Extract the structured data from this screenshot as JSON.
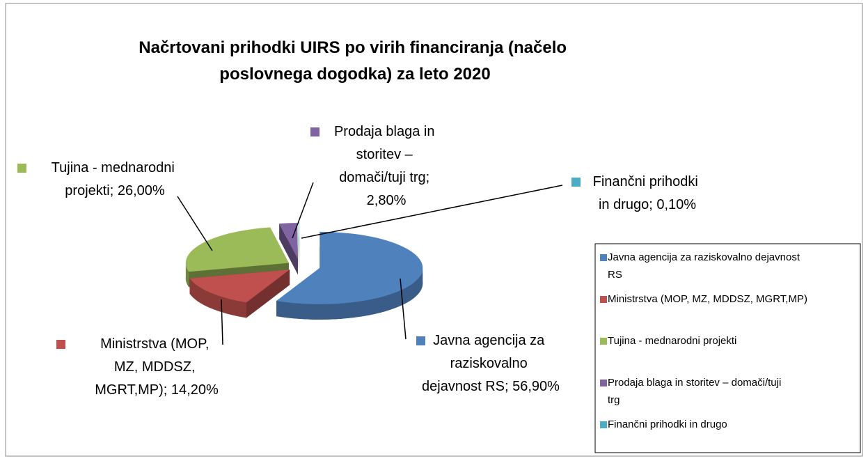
{
  "chart_data": {
    "type": "pie",
    "title": "Načrtovani prihodki UIRS po virih financiranja (načelo poslovnega dogodka) za leto 2020",
    "categories": [
      "Javna agencija za raziskovalno dejavnost RS",
      "Ministrstva (MOP, MZ, MDDSZ, MGRT,MP)",
      "Tujina - mednarodni projekti",
      "Prodaja blaga in storitev – domači/tuji  trg",
      "Finančni prihodki in drugo"
    ],
    "values": [
      56.9,
      14.2,
      26.0,
      2.8,
      0.1
    ],
    "value_labels": [
      "Javna agencija za raziskovalno dejavnost RS; 56,90%",
      "Ministrstva (MOP, MZ, MDDSZ, MGRT,MP); 14,20%",
      "Tujina - mednarodni projekti; 26,00%",
      "Prodaja blaga in storitev – domači/tuji  trg; 2,80%",
      "Finančni prihodki in drugo; 0,10%"
    ],
    "colors": [
      "#4f81bd",
      "#c0504d",
      "#9bbb59",
      "#8064a2",
      "#4bacc6"
    ],
    "legend": "right"
  }
}
